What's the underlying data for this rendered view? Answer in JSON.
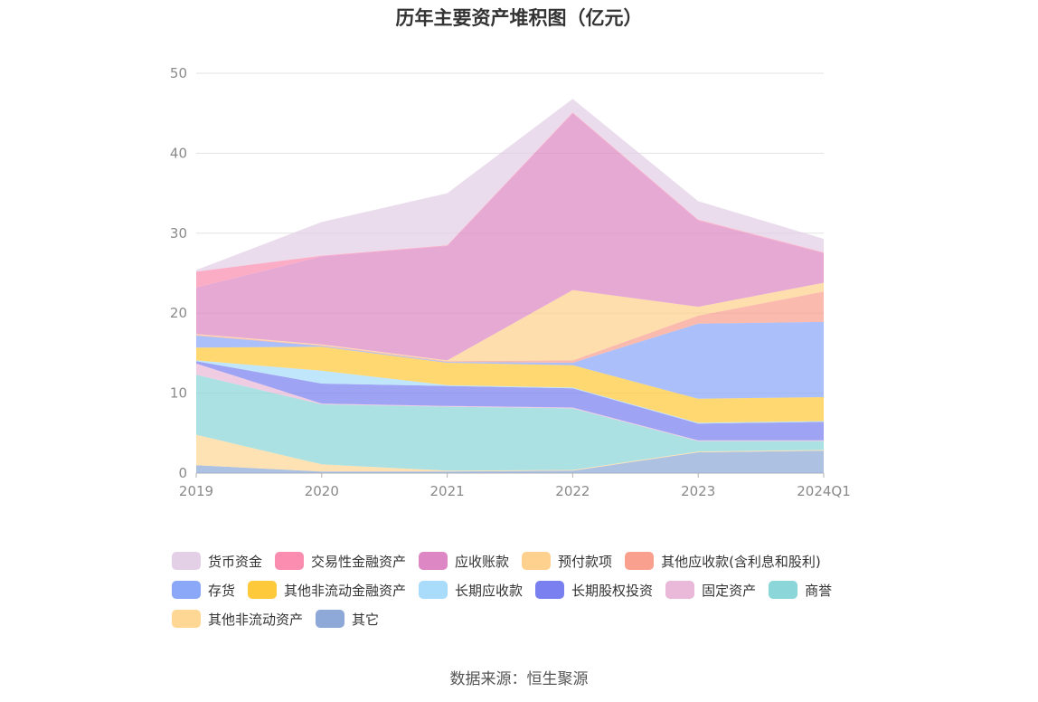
{
  "chart_data": {
    "type": "area",
    "stacked": true,
    "title": "历年主要资产堆积图（亿元）",
    "x": [
      "2019",
      "2020",
      "2021",
      "2022",
      "2023",
      "2024Q1"
    ],
    "ylim": [
      0,
      50
    ],
    "yticks": [
      0,
      10,
      20,
      30,
      40,
      50
    ],
    "grid": true,
    "legend_position": "bottom",
    "series": [
      {
        "name": "其它",
        "color": "#8ea9d8",
        "values": [
          1.0,
          0.2,
          0.2,
          0.3,
          2.6,
          2.8
        ]
      },
      {
        "name": "其他非流动资产",
        "color": "#ffd795",
        "values": [
          3.8,
          0.9,
          0.1,
          0.1,
          0.1,
          0.1
        ]
      },
      {
        "name": "商誉",
        "color": "#8ad6d8",
        "values": [
          7.5,
          7.5,
          8.0,
          7.7,
          1.3,
          1.1
        ]
      },
      {
        "name": "固定资产",
        "color": "#eab8d8",
        "values": [
          1.4,
          0.1,
          0.1,
          0.1,
          0.1,
          0.1
        ]
      },
      {
        "name": "长期股权投资",
        "color": "#7a80f0",
        "values": [
          0.3,
          2.5,
          2.5,
          2.4,
          2.1,
          2.3
        ]
      },
      {
        "name": "长期应收款",
        "color": "#a8dcfa",
        "values": [
          0.1,
          1.6,
          0.1,
          0.1,
          0.1,
          0.1
        ]
      },
      {
        "name": "其他非流动金融资产",
        "color": "#ffc93c",
        "values": [
          1.6,
          3.0,
          2.8,
          2.8,
          3.0,
          3.0
        ]
      },
      {
        "name": "存货",
        "color": "#8aa7f8",
        "values": [
          1.5,
          0.1,
          0.1,
          0.3,
          9.4,
          9.4
        ]
      },
      {
        "name": "其他应收款(含利息和股利)",
        "color": "#f9a08f",
        "values": [
          0.1,
          0.1,
          0.1,
          0.3,
          1.0,
          3.8
        ]
      },
      {
        "name": "预付款项",
        "color": "#ffd18e",
        "values": [
          0.1,
          0.1,
          0.1,
          8.8,
          1.1,
          1.1
        ]
      },
      {
        "name": "应收账款",
        "color": "#dd88c4",
        "values": [
          5.8,
          11.0,
          14.3,
          22.1,
          10.8,
          3.7
        ]
      },
      {
        "name": "交易性金融资产",
        "color": "#fb8db0",
        "values": [
          2.0,
          0.1,
          0.1,
          0.1,
          0.1,
          0.1
        ]
      },
      {
        "name": "货币资金",
        "color": "#e3cfe6",
        "values": [
          0.2,
          4.2,
          6.5,
          1.7,
          2.3,
          1.7
        ]
      }
    ]
  },
  "legend_order": [
    "货币资金",
    "交易性金融资产",
    "应收账款",
    "预付款项",
    "其他应收款(含利息和股利)",
    "存货",
    "其他非流动金融资产",
    "长期应收款",
    "长期股权投资",
    "固定资产",
    "商誉",
    "其他非流动资产",
    "其它"
  ],
  "source": "数据来源：恒生聚源"
}
